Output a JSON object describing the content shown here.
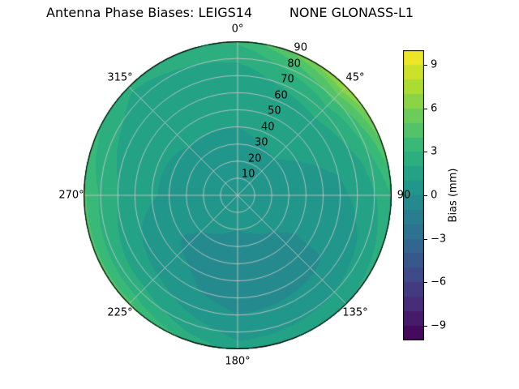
{
  "title": "Antenna Phase Biases: LEIGS14         NONE GLONASS-L1",
  "chart_data": {
    "type": "heatmap",
    "projection": "polar",
    "title": "Antenna Phase Biases: LEIGS14         NONE GLONASS-L1",
    "angular_tick_labels": [
      "0°",
      "45°",
      "90",
      "135°",
      "180°",
      "225°",
      "270°",
      "315°"
    ],
    "angular_tick_angles_deg": [
      0,
      45,
      90,
      135,
      180,
      225,
      270,
      315
    ],
    "radial_tick_labels": [
      "10",
      "20",
      "30",
      "40",
      "50",
      "60",
      "70",
      "80",
      "90"
    ],
    "radial_label_azimuth_deg": 22.5,
    "azimuth_deg": [
      0,
      45,
      90,
      135,
      180,
      225,
      270,
      315,
      360
    ],
    "zenith_deg": [
      0,
      20,
      40,
      60,
      75,
      85,
      90
    ],
    "bias_mm": [
      [
        0.5,
        0.5,
        0.5,
        0.5,
        0.5,
        0.5,
        0.5,
        0.5,
        0.5
      ],
      [
        0.8,
        0.8,
        0.6,
        0.2,
        0.0,
        0.2,
        0.6,
        0.8,
        0.8
      ],
      [
        1.0,
        1.2,
        0.6,
        -0.2,
        -0.5,
        -0.2,
        0.8,
        1.0,
        1.0
      ],
      [
        1.3,
        1.6,
        0.8,
        -0.2,
        -0.5,
        0.5,
        1.4,
        1.2,
        1.3
      ],
      [
        1.8,
        3.2,
        1.4,
        0.6,
        0.3,
        1.8,
        2.4,
        1.5,
        1.8
      ],
      [
        2.6,
        5.5,
        2.4,
        1.4,
        1.0,
        3.2,
        3.4,
        1.9,
        2.6
      ],
      [
        3.2,
        7.5,
        3.0,
        2.0,
        1.6,
        4.5,
        4.3,
        2.3,
        3.2
      ]
    ],
    "vmin": -10,
    "vmax": 10,
    "level_step_mm": 1,
    "colormap": {
      "name": "viridis",
      "stops": [
        "#440154",
        "#482878",
        "#3e4989",
        "#31688e",
        "#26828e",
        "#1f9e89",
        "#35b779",
        "#6dcd59",
        "#b4de2c",
        "#fde725"
      ]
    },
    "colorbar": {
      "label": "Bias (mm)",
      "ticks": [
        {
          "label": "9",
          "value": 9
        },
        {
          "label": "6",
          "value": 6
        },
        {
          "label": "3",
          "value": 3
        },
        {
          "label": "0",
          "value": 0
        },
        {
          "label": "−3",
          "value": -3
        },
        {
          "label": "−6",
          "value": -6
        },
        {
          "label": "−9",
          "value": -9
        }
      ]
    },
    "grid_color": "#c8c8c8",
    "outline_color": "#000000"
  }
}
